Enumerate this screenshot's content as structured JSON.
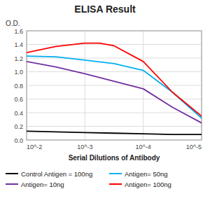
{
  "chart_data": {
    "type": "line",
    "title": "ELISA Result",
    "y_label": "O.D.",
    "x_label": "Serial Dilutions of Antibody",
    "log": "x",
    "grid": true,
    "legend": "bottom",
    "xlim": [
      0.01,
      1e-05
    ],
    "xticks": [
      {
        "value": 0.01,
        "label": "10^-2"
      },
      {
        "value": 0.001,
        "label": "10^-3"
      },
      {
        "value": 0.0001,
        "label": "10^-4"
      },
      {
        "value": 1e-05,
        "label": "10^-5"
      }
    ],
    "ylim": [
      0,
      1.6
    ],
    "yticks": [
      {
        "value": 0,
        "label": "0.0"
      },
      0.2,
      0.4,
      0.6,
      0.8,
      {
        "value": 1.0,
        "label": "1.0"
      },
      1.2,
      1.4,
      1.6
    ],
    "series": [
      {
        "name": "Control Antigen = 100ng",
        "color": "#000000",
        "x": [
          0.01,
          0.0031622776601683794,
          0.001,
          0.00031622776601683794,
          0.0001,
          3.1622776601683795e-05,
          1e-05
        ],
        "values": [
          0.13,
          0.12,
          0.11,
          0.1,
          0.09,
          0.08,
          0.08
        ]
      },
      {
        "name": "Antigen= 10ng",
        "color": "#7030A0",
        "x": [
          0.01,
          0.0031622776601683794,
          0.001,
          0.00031622776601683794,
          0.0001,
          3.1622776601683795e-05,
          1e-05
        ],
        "values": [
          1.15,
          1.07,
          0.97,
          0.86,
          0.75,
          0.48,
          0.25
        ]
      },
      {
        "name": "Antigen= 50ng",
        "color": "#00B0F0",
        "x": [
          0.01,
          0.0031622776601683794,
          0.001,
          0.00031622776601683794,
          0.0001,
          3.1622776601683795e-05,
          1e-05
        ],
        "values": [
          1.23,
          1.22,
          1.17,
          1.12,
          1.02,
          0.7,
          0.32
        ]
      },
      {
        "name": "Antigen= 100ng",
        "color": "#FF0000",
        "x": [
          0.01,
          0.0031622776601683794,
          0.001,
          0.0005623413251903491,
          0.00031622776601683794,
          0.0001,
          3.1622776601683795e-05,
          1e-05
        ],
        "values": [
          1.28,
          1.37,
          1.42,
          1.42,
          1.38,
          1.15,
          0.7,
          0.35
        ]
      }
    ]
  }
}
